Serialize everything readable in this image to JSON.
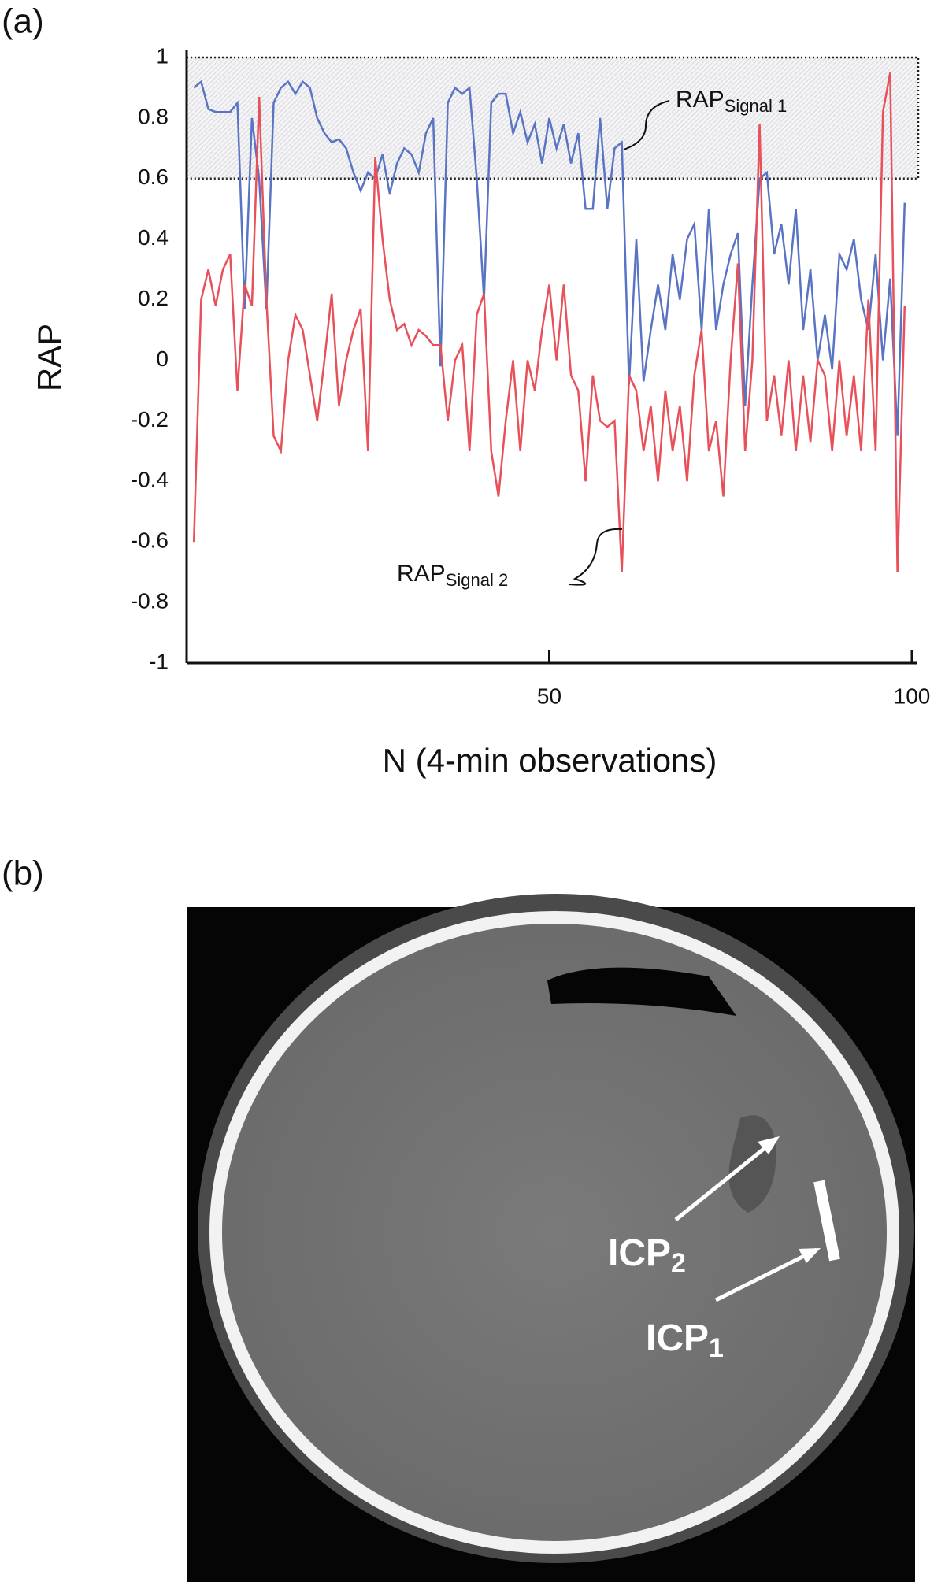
{
  "chart_data": {
    "type": "line",
    "panel_label": "(a)",
    "y_label": "RAP",
    "x_label": "N (4-min observations)",
    "xlim": [
      0,
      100
    ],
    "xticks": [
      50,
      100
    ],
    "ylim": [
      -1,
      1
    ],
    "yticks": [
      -1,
      -0.8,
      -0.6,
      -0.4,
      -0.2,
      0,
      0.2,
      0.4,
      0.6,
      0.8,
      1
    ],
    "shaded_range": [
      0.6,
      1
    ],
    "x": [
      1,
      2,
      3,
      4,
      5,
      6,
      7,
      8,
      9,
      10,
      11,
      12,
      13,
      14,
      15,
      16,
      17,
      18,
      19,
      20,
      21,
      22,
      23,
      24,
      25,
      26,
      27,
      28,
      29,
      30,
      31,
      32,
      33,
      34,
      35,
      36,
      37,
      38,
      39,
      40,
      41,
      42,
      43,
      44,
      45,
      46,
      47,
      48,
      49,
      50,
      51,
      52,
      53,
      54,
      55,
      56,
      57,
      58,
      59,
      60,
      61,
      62,
      63,
      64,
      65,
      66,
      67,
      68,
      69,
      70,
      71,
      72,
      73,
      74,
      75,
      76,
      77,
      78,
      79,
      80,
      81,
      82,
      83,
      84,
      85,
      86,
      87,
      88,
      89,
      90,
      91,
      92,
      93,
      94,
      95,
      96,
      97,
      98,
      99
    ],
    "series": [
      {
        "name": {
          "text": "RAP",
          "subscript": "Signal 1"
        },
        "color": "#5a74c4",
        "values": [
          0.9,
          0.92,
          0.83,
          0.82,
          0.82,
          0.82,
          0.85,
          0.17,
          0.8,
          0.6,
          0.17,
          0.85,
          0.9,
          0.92,
          0.88,
          0.92,
          0.9,
          0.8,
          0.75,
          0.72,
          0.73,
          0.7,
          0.62,
          0.56,
          0.62,
          0.6,
          0.68,
          0.55,
          0.65,
          0.7,
          0.68,
          0.62,
          0.75,
          0.8,
          -0.02,
          0.85,
          0.9,
          0.88,
          0.9,
          0.6,
          0.2,
          0.85,
          0.88,
          0.88,
          0.75,
          0.82,
          0.72,
          0.78,
          0.65,
          0.8,
          0.7,
          0.78,
          0.65,
          0.75,
          0.5,
          0.5,
          0.8,
          0.5,
          0.7,
          0.72,
          -0.08,
          0.4,
          -0.07,
          0.1,
          0.25,
          0.1,
          0.35,
          0.2,
          0.4,
          0.45,
          0.1,
          0.5,
          0.1,
          0.25,
          0.35,
          0.42,
          -0.15,
          0.25,
          0.6,
          0.62,
          0.35,
          0.45,
          0.25,
          0.5,
          0.1,
          0.3,
          0.0,
          0.15,
          -0.03,
          0.35,
          0.3,
          0.4,
          0.2,
          0.1,
          0.35,
          0.0,
          0.27,
          -0.25,
          0.52
        ]
      },
      {
        "name": {
          "text": "RAP",
          "subscript": "Signal 2"
        },
        "color": "#e8505a",
        "values": [
          -0.6,
          0.2,
          0.3,
          0.18,
          0.3,
          0.35,
          -0.1,
          0.25,
          0.18,
          0.87,
          0.2,
          -0.25,
          -0.3,
          0.0,
          0.15,
          0.1,
          -0.05,
          -0.2,
          0.0,
          0.22,
          -0.15,
          0.0,
          0.1,
          0.17,
          -0.3,
          0.67,
          0.4,
          0.2,
          0.1,
          0.12,
          0.05,
          0.1,
          0.08,
          0.05,
          0.05,
          -0.2,
          0.0,
          0.05,
          -0.3,
          0.15,
          0.22,
          -0.3,
          -0.45,
          -0.2,
          0.0,
          -0.3,
          0.0,
          -0.1,
          0.1,
          0.25,
          0.0,
          0.25,
          -0.05,
          -0.1,
          -0.4,
          -0.05,
          -0.2,
          -0.22,
          -0.2,
          -0.7,
          -0.05,
          -0.1,
          -0.3,
          -0.15,
          -0.4,
          -0.1,
          -0.3,
          -0.15,
          -0.4,
          -0.05,
          0.1,
          -0.3,
          -0.2,
          -0.45,
          0.0,
          0.32,
          -0.3,
          0.0,
          0.78,
          -0.2,
          -0.05,
          -0.25,
          0.0,
          -0.3,
          -0.05,
          -0.27,
          0.0,
          -0.05,
          -0.3,
          0.0,
          -0.25,
          -0.05,
          -0.3,
          0.2,
          -0.3,
          0.82,
          0.95,
          -0.7,
          0.18
        ]
      }
    ]
  },
  "panel_b": {
    "panel_label": "(b)",
    "annotations": [
      {
        "text": "ICP",
        "subscript": "2"
      },
      {
        "text": "ICP",
        "subscript": "1"
      }
    ]
  }
}
